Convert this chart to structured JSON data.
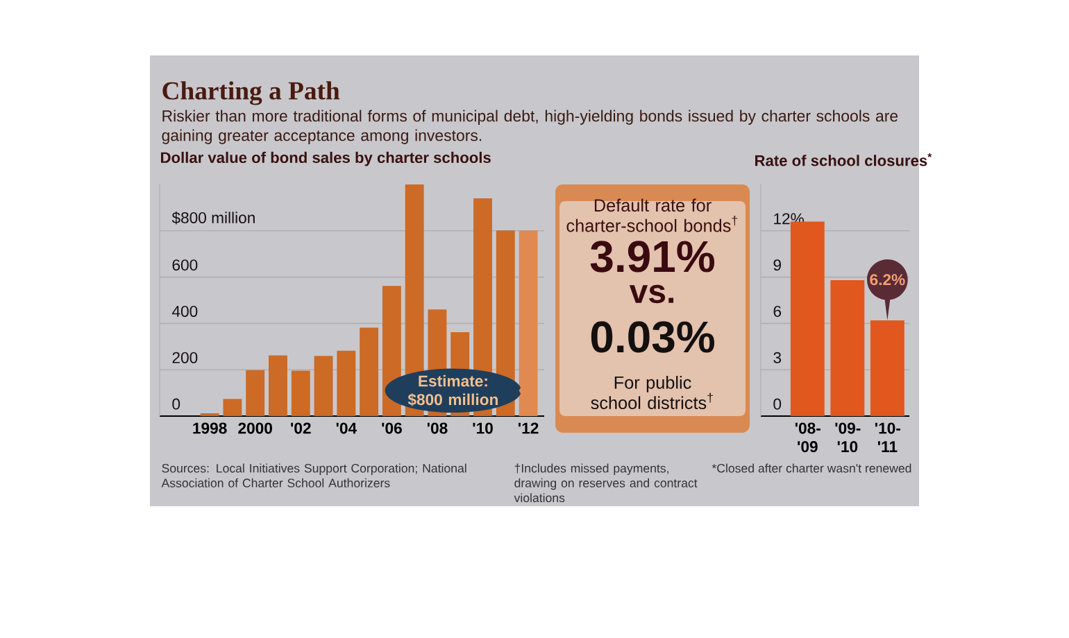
{
  "chart_data": [
    {
      "type": "other",
      "title": "Charting a Path",
      "subtitle": "Riskier than more traditional forms of municipal debt, high-yielding bonds issued by charter schools are gaining greater acceptance among investors."
    },
    {
      "type": "bar",
      "title": "Dollar value of bond sales by charter schools",
      "categories": [
        "1998",
        null,
        "2000",
        null,
        "'02",
        null,
        "'04",
        null,
        "'06",
        null,
        "'08",
        null,
        "'10",
        null,
        "'12"
      ],
      "values": [
        12,
        74,
        198,
        262,
        196,
        260,
        282,
        382,
        562,
        1000,
        460,
        362,
        940,
        802,
        802
      ],
      "colors": [
        "#cc6a26",
        "#cc6a26",
        "#cc6a26",
        "#cc6a26",
        "#cc6a26",
        "#cc6a26",
        "#cc6a26",
        "#cc6a26",
        "#cc6a26",
        "#cc6a26",
        "#cc6a26",
        "#cc6a26",
        "#cc6a26",
        "#cc6a26",
        "#e08a52"
      ],
      "ylim": [
        0,
        1000
      ],
      "yticks": [
        0,
        200,
        400,
        600,
        {
          "value": 800,
          "label": "$800 million"
        }
      ],
      "grid": "y",
      "annotations": [
        "Estimate: $800 million",
        "Sources: Local Initiatives Support Corporation; National Association of Charter School Authorizers"
      ]
    },
    {
      "type": "other",
      "title": "Default rate for charter-school bonds$^{†}$",
      "annotations": [
        "3.91%",
        "vs.",
        "0.03%",
        "For public school districts$^{†}$",
        "†Includes missed payments, drawing on reserves and contract violations"
      ]
    },
    {
      "type": "bar",
      "title": "Rate of school closures$^{*}$",
      "categories": [
        "'08-'09",
        "'09-'10",
        "'10-'11"
      ],
      "values": [
        12.6,
        8.8,
        6.2
      ],
      "color": "#e0581e",
      "value_labels": [
        null,
        null,
        "6.2%"
      ],
      "ylim": [
        0,
        15
      ],
      "yticks": [
        0,
        3,
        6,
        9,
        {
          "value": 12,
          "label": "12%"
        }
      ],
      "grid": "y",
      "annotations": [
        "*Closed after charter wasn't renewed"
      ]
    }
  ]
}
